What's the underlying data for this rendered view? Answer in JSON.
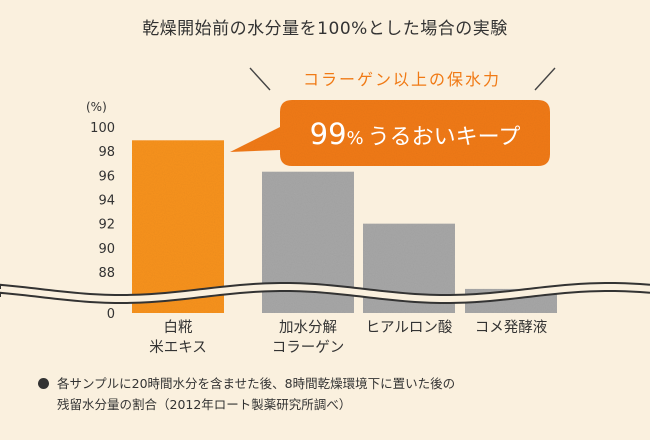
{
  "header": {
    "title": "乾燥開始前の水分量を100%とした場合の実験"
  },
  "callout": {
    "subtitle": "コラーゲン以上の保水力",
    "main_number": "99",
    "main_unit": "%",
    "main_text": "うるおいキープ"
  },
  "chart_data": {
    "type": "bar",
    "ylabel": "(%)",
    "categories": [
      [
        "白糀",
        "米エキス"
      ],
      [
        "加水分解",
        "コラーゲン"
      ],
      [
        "ヒアルロン酸"
      ],
      [
        "コメ発酵液"
      ]
    ],
    "values": [
      98.9,
      96.3,
      92.0,
      86.6
    ],
    "y_ticks": [
      88,
      90,
      92,
      94,
      96,
      98,
      100
    ],
    "axis_break": true,
    "axis_zero_label": "0",
    "ylim": [
      88,
      100
    ],
    "colors": [
      "#f7921e",
      "#a7a7a7",
      "#a7a7a7",
      "#a7a7a7"
    ],
    "accent": "#f07a15",
    "grid": false
  },
  "footnote": {
    "line1": "各サンプルに20時間水分を含ませた後、8時間乾燥環境下に置いた後の",
    "line2": "残留水分量の割合（2012年ロート製薬研究所調べ）"
  }
}
